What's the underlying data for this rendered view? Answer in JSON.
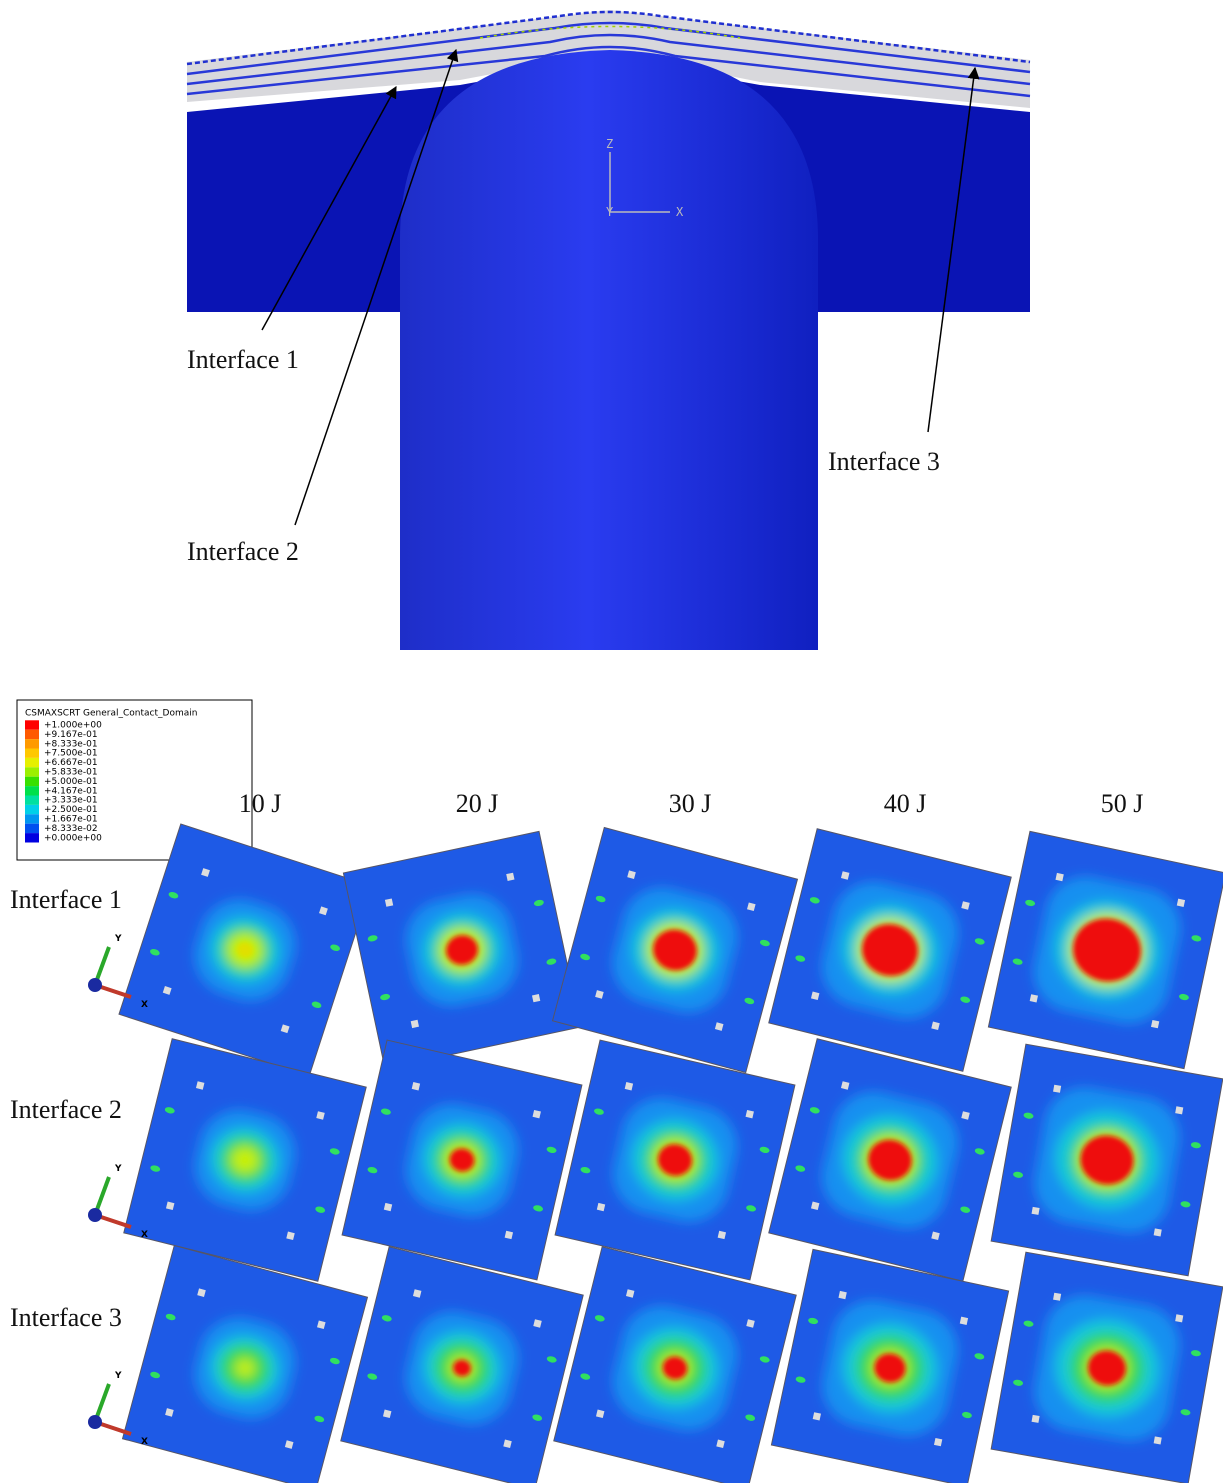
{
  "top_figure": {
    "triad": {
      "z": "Z",
      "y": "Y",
      "x": "X"
    },
    "labels": [
      "Interface 1",
      "Interface 2",
      "Interface 3"
    ]
  },
  "bottom_figure": {
    "legend": {
      "title": "CSMAXSCRT General_Contact_Domain",
      "entries": [
        {
          "label": "+1.000e+00",
          "color": "#ff0000"
        },
        {
          "label": "+9.167e-01",
          "color": "#ff5a00"
        },
        {
          "label": "+8.333e-01",
          "color": "#ff9a00"
        },
        {
          "label": "+7.500e-01",
          "color": "#ffc800"
        },
        {
          "label": "+6.667e-01",
          "color": "#e6f000"
        },
        {
          "label": "+5.833e-01",
          "color": "#9cf000"
        },
        {
          "label": "+5.000e-01",
          "color": "#38e000"
        },
        {
          "label": "+4.167e-01",
          "color": "#00e04a"
        },
        {
          "label": "+3.333e-01",
          "color": "#00e0a0"
        },
        {
          "label": "+2.500e-01",
          "color": "#00d0e8"
        },
        {
          "label": "+1.667e-01",
          "color": "#0096f0"
        },
        {
          "label": "+8.333e-02",
          "color": "#0050f0"
        },
        {
          "label": "+0.000e+00",
          "color": "#0000e0"
        }
      ]
    },
    "columns": [
      "10 J",
      "20 J",
      "30 J",
      "40 J",
      "50 J"
    ],
    "rows": [
      "Interface 1",
      "Interface 2",
      "Interface 3"
    ],
    "triad": {
      "y": "Y",
      "x": "X"
    }
  }
}
